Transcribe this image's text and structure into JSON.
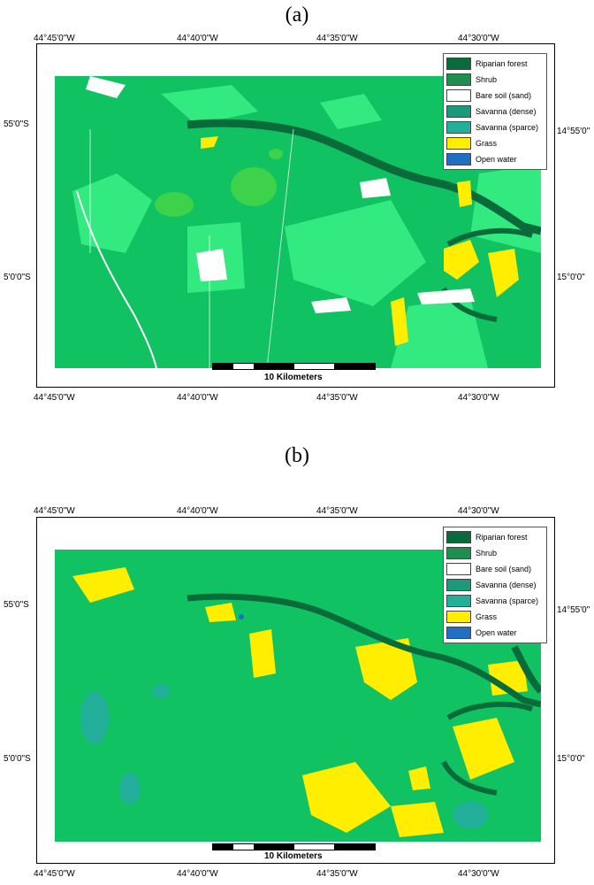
{
  "panels": [
    {
      "label": "(a)",
      "top_coords": [
        "44°45'0\"W",
        "44°40'0\"W",
        "44°35'0\"W",
        "44°30'0\"W"
      ],
      "bottom_coords": [
        "44°45'0\"W",
        "44°40'0\"W",
        "44°35'0\"W",
        "44°30'0\"W"
      ],
      "left_coords": [
        "55'0\"S",
        "5'0'0\"S"
      ],
      "right_coords": [
        "14°55'0\"",
        "15°0'0\""
      ],
      "scale_label": "10 Kilometers"
    },
    {
      "label": "(b)",
      "top_coords": [
        "44°45'0\"W",
        "44°40'0\"W",
        "44°35'0\"W",
        "44°30'0\"W"
      ],
      "bottom_coords": [
        "44°45'0\"W",
        "44°40'0\"W",
        "44°35'0\"W",
        "44°30'0\"W"
      ],
      "left_coords": [
        "55'0\"S",
        "5'0'0\"S"
      ],
      "right_coords": [
        "14°55'0\"",
        "15°0'0\""
      ],
      "scale_label": "10 Kilometers"
    }
  ],
  "legend": [
    {
      "label": "Riparian forest",
      "color": "#0a6b3a"
    },
    {
      "label": "Shrub",
      "color": "#1e8f4e"
    },
    {
      "label": "Bare soil (sand)",
      "color": "#ffffff"
    },
    {
      "label": "Savanna (dense)",
      "color": "#1a9a7a"
    },
    {
      "label": "Savanna (sparce)",
      "color": "#22b09a"
    },
    {
      "label": "Grass",
      "color": "#ffee00"
    },
    {
      "label": "Open water",
      "color": "#1f6fc5"
    }
  ],
  "colors": {
    "base_green": "#11c263",
    "light_green": "#33ea80",
    "medium_green": "#3dd24a",
    "dark_green": "#0a6b3a",
    "grass": "#ffee00",
    "bare": "#ffffff"
  }
}
